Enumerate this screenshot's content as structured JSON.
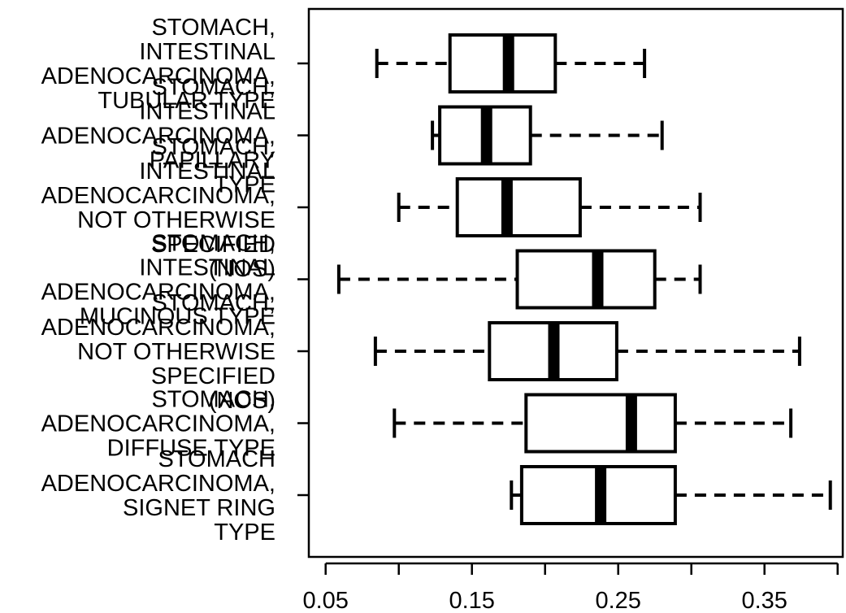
{
  "chart_data": {
    "type": "boxplot",
    "orientation": "horizontal",
    "categories": [
      "STOMACH, INTESTINAL ADENOCARCINOMA, TUBULAR TYPE",
      "STOMACH, INTESTINAL ADENOCARCINOMA, PAPILLARY TYPE",
      "STOMACH, INTESTINAL ADENOCARCINOMA, NOT OTHERWISE SPECIFIED (NOS)",
      "STOMACH, INTESTINAL ADENOCARCINOMA, MUCINOUS TYPE",
      "STOMACH, ADENOCARCINOMA, NOT OTHERWISE SPECIFIED (NOS)",
      "STOMACH, ADENOCARCINOMA, DIFFUSE TYPE",
      "STOMACH ADENOCARCINOMA, SIGNET RING TYPE"
    ],
    "category_label_lines": [
      [
        "STOMACH,",
        "INTESTINAL",
        "ADENOCARCINOMA,",
        "TUBULAR TYPE"
      ],
      [
        "STOMACH,",
        "INTESTINAL",
        "ADENOCARCINOMA,",
        "PAPILLARY",
        "TYPE"
      ],
      [
        "STOMACH,",
        "INTESTINAL",
        "ADENOCARCINOMA,",
        "NOT OTHERWISE",
        "SPECIFIED",
        "(NOS)"
      ],
      [
        "STOMACH,",
        "INTESTINAL",
        "ADENOCARCINOMA,",
        "MUCINOUS TYPE"
      ],
      [
        "STOMACH,",
        "ADENOCARCINOMA,",
        "NOT OTHERWISE",
        "SPECIFIED",
        "(NOS)"
      ],
      [
        "STOMACH,",
        "ADENOCARCINOMA,",
        "DIFFUSE TYPE"
      ],
      [
        "STOMACH",
        "ADENOCARCINOMA,",
        "SIGNET RING",
        "TYPE"
      ]
    ],
    "boxes": [
      {
        "min": 0.085,
        "q1": 0.135,
        "median": 0.175,
        "q3": 0.207,
        "max": 0.268
      },
      {
        "min": 0.123,
        "q1": 0.128,
        "median": 0.16,
        "q3": 0.19,
        "max": 0.28
      },
      {
        "min": 0.1,
        "q1": 0.14,
        "median": 0.174,
        "q3": 0.224,
        "max": 0.306
      },
      {
        "min": 0.059,
        "q1": 0.181,
        "median": 0.236,
        "q3": 0.275,
        "max": 0.306
      },
      {
        "min": 0.084,
        "q1": 0.162,
        "median": 0.206,
        "q3": 0.249,
        "max": 0.374
      },
      {
        "min": 0.097,
        "q1": 0.187,
        "median": 0.259,
        "q3": 0.289,
        "max": 0.368
      },
      {
        "min": 0.177,
        "q1": 0.184,
        "median": 0.238,
        "q3": 0.289,
        "max": 0.395
      }
    ],
    "xlim": [
      0.0385,
      0.4035
    ],
    "xticks": [
      0.05,
      0.1,
      0.15,
      0.2,
      0.25,
      0.3,
      0.35,
      0.4
    ],
    "xtick_labels": [
      "0.05",
      "",
      "0.15",
      "",
      "0.25",
      "",
      "0.35",
      ""
    ],
    "title": "",
    "xlabel": "",
    "ylabel": "",
    "grid": false,
    "colors": {
      "stroke": "#000000",
      "fill": "#ffffff"
    }
  }
}
